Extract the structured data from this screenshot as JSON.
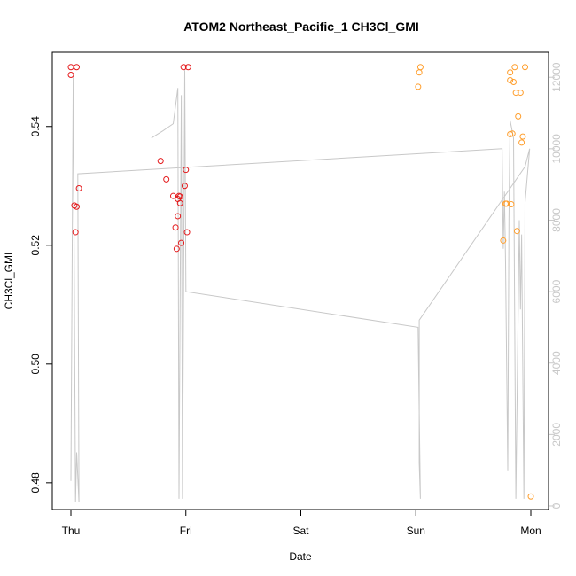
{
  "chart_data": {
    "type": "scatter",
    "title": "ATOM2 Northeast_Pacific_1 CH3Cl_GMI",
    "xlabel": "Date",
    "ylabel": "CH3Cl_GMI",
    "x_ticks": [
      "Thu",
      "Fri",
      "Sat",
      "Sun",
      "Mon"
    ],
    "xlim": [
      0,
      4
    ],
    "ylim": [
      0.4755,
      0.5525
    ],
    "y_ticks": [
      0.48,
      0.5,
      0.52,
      0.54
    ],
    "y_tick_labels": [
      "0.48",
      "0.50",
      "0.52",
      "0.54"
    ],
    "y2_axis": {
      "color": "#c8c8c8",
      "ylim": [
        -100,
        12700
      ],
      "ticks": [
        0,
        2000,
        4000,
        6000,
        8000,
        10000,
        12000
      ],
      "tick_labels": [
        "0",
        "2000",
        "4000",
        "6000",
        "8000",
        "10000",
        "12000"
      ]
    },
    "grid": false,
    "series": [
      {
        "color": "#e41a1c",
        "points": [
          [
            0.0,
            0.55
          ],
          [
            0.05,
            0.55
          ],
          [
            0.0,
            0.5487
          ],
          [
            0.07,
            0.5296
          ],
          [
            0.03,
            0.5267
          ],
          [
            0.05,
            0.5265
          ],
          [
            0.04,
            0.5222
          ],
          [
            0.98,
            0.55
          ],
          [
            1.02,
            0.55
          ],
          [
            0.78,
            0.5342
          ],
          [
            0.83,
            0.5311
          ],
          [
            1.0,
            0.5327
          ],
          [
            0.99,
            0.53
          ],
          [
            0.89,
            0.5283
          ],
          [
            0.94,
            0.5283
          ],
          [
            0.93,
            0.5278
          ],
          [
            0.95,
            0.5282
          ],
          [
            0.95,
            0.5271
          ],
          [
            0.93,
            0.5249
          ],
          [
            0.91,
            0.523
          ],
          [
            1.01,
            0.5222
          ],
          [
            0.96,
            0.5204
          ],
          [
            0.92,
            0.5194
          ]
        ]
      },
      {
        "color": "#ff9e2c",
        "points": [
          [
            3.04,
            0.55
          ],
          [
            3.03,
            0.5491
          ],
          [
            3.02,
            0.5467
          ],
          [
            3.86,
            0.55
          ],
          [
            3.95,
            0.55
          ],
          [
            3.82,
            0.5491
          ],
          [
            3.82,
            0.5478
          ],
          [
            3.85,
            0.5475
          ],
          [
            3.87,
            0.5457
          ],
          [
            3.91,
            0.5457
          ],
          [
            3.89,
            0.5417
          ],
          [
            3.84,
            0.5388
          ],
          [
            3.82,
            0.5387
          ],
          [
            3.93,
            0.5383
          ],
          [
            3.92,
            0.5373
          ],
          [
            3.78,
            0.527
          ],
          [
            3.79,
            0.527
          ],
          [
            3.83,
            0.5269
          ],
          [
            3.76,
            0.5208
          ],
          [
            3.88,
            0.5224
          ],
          [
            4.0,
            0.4777
          ]
        ]
      }
    ],
    "altitude_line": {
      "color": "#c8c8c8",
      "points": [
        [
          0.0,
          700
        ],
        [
          0.02,
          12000
        ],
        [
          0.04,
          100
        ],
        [
          0.05,
          1500
        ],
        [
          0.07,
          100
        ],
        [
          0.06,
          9300
        ],
        [
          3.75,
          10000
        ],
        [
          3.76,
          7200
        ],
        [
          3.77,
          8800
        ],
        [
          3.78,
          6800
        ],
        [
          3.8,
          1000
        ],
        [
          3.81,
          8000
        ],
        [
          3.82,
          10800
        ],
        [
          3.85,
          10300
        ],
        [
          3.87,
          200
        ],
        [
          3.9,
          8000
        ],
        [
          3.91,
          5500
        ],
        [
          3.92,
          7600
        ],
        [
          3.94,
          200
        ],
        [
          3.95,
          8500
        ],
        [
          3.99,
          10000
        ],
        [
          3.95,
          9500
        ],
        [
          3.03,
          5200
        ],
        [
          3.03,
          1200
        ],
        [
          3.04,
          200
        ],
        [
          3.02,
          5000
        ],
        [
          1.0,
          6000
        ],
        [
          0.99,
          12200
        ],
        [
          0.97,
          200
        ],
        [
          0.96,
          11500
        ],
        [
          0.94,
          200
        ],
        [
          0.93,
          11700
        ],
        [
          0.89,
          10700
        ],
        [
          0.8,
          10500
        ],
        [
          0.75,
          10400
        ],
        [
          0.7,
          10300
        ]
      ]
    }
  }
}
